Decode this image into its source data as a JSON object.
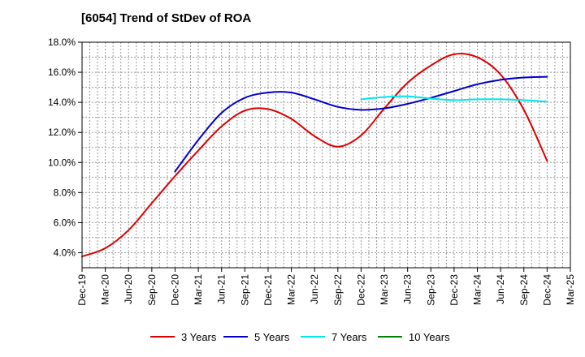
{
  "chart_data": {
    "type": "line",
    "title": "[6054]  Trend of StDev of ROA",
    "xlabel": "",
    "ylabel": "",
    "x_ticks": [
      "Dec-19",
      "Mar-20",
      "Jun-20",
      "Sep-20",
      "Dec-20",
      "Mar-21",
      "Jun-21",
      "Sep-21",
      "Dec-21",
      "Mar-22",
      "Jun-22",
      "Sep-22",
      "Dec-22",
      "Mar-23",
      "Jun-23",
      "Sep-23",
      "Dec-23",
      "Mar-24",
      "Jun-24",
      "Sep-24",
      "Dec-24",
      "Mar-25"
    ],
    "y_ticks": [
      "4.0%",
      "6.0%",
      "8.0%",
      "10.0%",
      "12.0%",
      "14.0%",
      "16.0%",
      "18.0%"
    ],
    "ylim": [
      3.0,
      18.0
    ],
    "grid": true,
    "legend_position": "bottom",
    "series": [
      {
        "name": "3 Years",
        "color": "#dd0000",
        "points": [
          [
            "Dec-19",
            3.75
          ],
          [
            "Mar-20",
            4.3
          ],
          [
            "Jun-20",
            5.5
          ],
          [
            "Sep-20",
            7.3
          ],
          [
            "Dec-20",
            9.1
          ],
          [
            "Mar-21",
            10.8
          ],
          [
            "Jun-21",
            12.4
          ],
          [
            "Sep-21",
            13.45
          ],
          [
            "Dec-21",
            13.55
          ],
          [
            "Mar-22",
            12.9
          ],
          [
            "Jun-22",
            11.75
          ],
          [
            "Sep-22",
            11.05
          ],
          [
            "Dec-22",
            11.8
          ],
          [
            "Mar-23",
            13.6
          ],
          [
            "Jun-23",
            15.3
          ],
          [
            "Sep-23",
            16.45
          ],
          [
            "Dec-23",
            17.2
          ],
          [
            "Mar-24",
            17.0
          ],
          [
            "Jun-24",
            15.85
          ],
          [
            "Sep-24",
            13.5
          ],
          [
            "Dec-24",
            10.1
          ]
        ]
      },
      {
        "name": "5 Years",
        "color": "#0000cc",
        "points": [
          [
            "Dec-20",
            9.4
          ],
          [
            "Mar-21",
            11.5
          ],
          [
            "Jun-21",
            13.3
          ],
          [
            "Sep-21",
            14.3
          ],
          [
            "Dec-21",
            14.65
          ],
          [
            "Mar-22",
            14.65
          ],
          [
            "Jun-22",
            14.2
          ],
          [
            "Sep-22",
            13.7
          ],
          [
            "Dec-22",
            13.5
          ],
          [
            "Mar-23",
            13.6
          ],
          [
            "Jun-23",
            13.9
          ],
          [
            "Sep-23",
            14.3
          ],
          [
            "Dec-23",
            14.75
          ],
          [
            "Mar-24",
            15.2
          ],
          [
            "Jun-24",
            15.5
          ],
          [
            "Sep-24",
            15.65
          ],
          [
            "Dec-24",
            15.7
          ]
        ]
      },
      {
        "name": "7 Years",
        "color": "#00e5ee",
        "points": [
          [
            "Dec-22",
            14.2
          ],
          [
            "Mar-23",
            14.35
          ],
          [
            "Jun-23",
            14.4
          ],
          [
            "Sep-23",
            14.25
          ],
          [
            "Dec-23",
            14.15
          ],
          [
            "Mar-24",
            14.2
          ],
          [
            "Jun-24",
            14.2
          ],
          [
            "Sep-24",
            14.15
          ],
          [
            "Dec-24",
            14.05
          ]
        ]
      },
      {
        "name": "10 Years",
        "color": "#008000",
        "points": []
      }
    ]
  }
}
